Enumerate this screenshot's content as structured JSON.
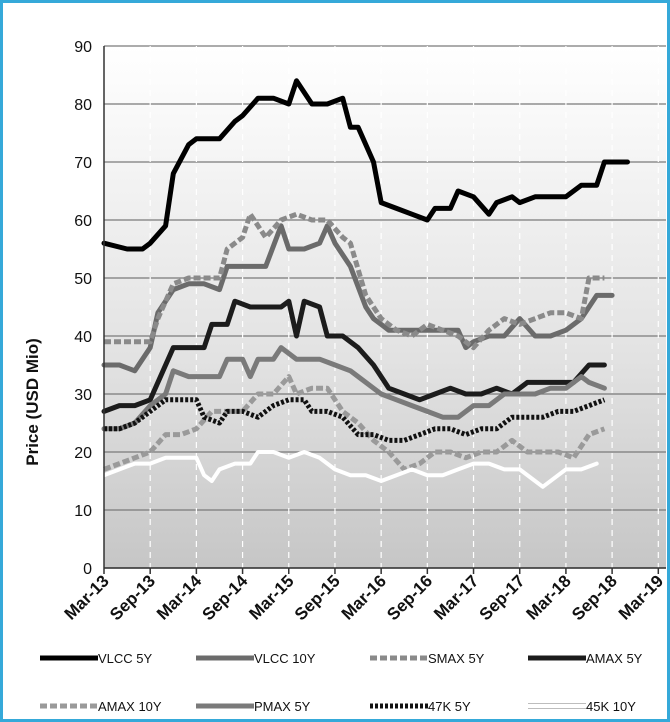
{
  "chart_data": {
    "type": "line",
    "title": "",
    "ylabel": "Price (USD Mio)",
    "xlabel": "",
    "ylim": [
      0,
      90
    ],
    "yticks": [
      0,
      10,
      20,
      30,
      40,
      50,
      60,
      70,
      80,
      90
    ],
    "xlim": [
      0,
      73
    ],
    "xtick_labels": [
      "Mar-13",
      "Sep-13",
      "Mar-14",
      "Sep-14",
      "Mar-15",
      "Sep-15",
      "Mar-16",
      "Sep-16",
      "Mar-17",
      "Sep-17",
      "Mar-18",
      "Sep-18",
      "Mar-19"
    ],
    "xtick_positions": [
      0,
      6,
      12,
      18,
      24,
      30,
      36,
      42,
      48,
      54,
      60,
      66,
      72
    ],
    "grid": true,
    "legend_position": "bottom",
    "series": [
      {
        "name": "VLCC 5Y",
        "color": "#000000",
        "style": "solid",
        "width": 5,
        "points": [
          [
            0,
            56
          ],
          [
            3,
            55
          ],
          [
            5,
            55
          ],
          [
            6,
            56
          ],
          [
            8,
            59
          ],
          [
            9,
            68
          ],
          [
            11,
            73
          ],
          [
            12,
            74
          ],
          [
            13,
            74
          ],
          [
            15,
            74
          ],
          [
            17,
            77
          ],
          [
            18,
            78
          ],
          [
            20,
            81
          ],
          [
            22,
            81
          ],
          [
            24,
            80
          ],
          [
            25,
            84
          ],
          [
            27,
            80
          ],
          [
            29,
            80
          ],
          [
            31,
            81
          ],
          [
            32,
            76
          ],
          [
            33,
            76
          ],
          [
            35,
            70
          ],
          [
            36,
            63
          ],
          [
            38,
            62
          ],
          [
            40,
            61
          ],
          [
            42,
            60
          ],
          [
            43,
            62
          ],
          [
            45,
            62
          ],
          [
            46,
            65
          ],
          [
            48,
            64
          ],
          [
            50,
            61
          ],
          [
            51,
            63
          ],
          [
            53,
            64
          ],
          [
            54,
            63
          ],
          [
            56,
            64
          ],
          [
            58,
            64
          ],
          [
            60,
            64
          ],
          [
            62,
            66
          ],
          [
            64,
            66
          ],
          [
            65,
            70
          ],
          [
            67,
            70
          ],
          [
            68,
            70
          ]
        ]
      },
      {
        "name": "VLCC 10Y",
        "color": "#6b6b6b",
        "style": "solid",
        "width": 5,
        "points": [
          [
            0,
            35
          ],
          [
            2,
            35
          ],
          [
            4,
            34
          ],
          [
            6,
            38
          ],
          [
            7,
            44
          ],
          [
            9,
            48
          ],
          [
            11,
            49
          ],
          [
            13,
            49
          ],
          [
            15,
            48
          ],
          [
            16,
            52
          ],
          [
            18,
            52
          ],
          [
            20,
            52
          ],
          [
            21,
            52
          ],
          [
            23,
            59
          ],
          [
            24,
            55
          ],
          [
            26,
            55
          ],
          [
            28,
            56
          ],
          [
            29,
            59
          ],
          [
            30,
            56
          ],
          [
            32,
            52
          ],
          [
            34,
            45
          ],
          [
            35,
            43
          ],
          [
            37,
            41
          ],
          [
            40,
            41
          ],
          [
            42,
            41
          ],
          [
            44,
            41
          ],
          [
            46,
            41
          ],
          [
            47,
            38
          ],
          [
            48,
            39
          ],
          [
            50,
            40
          ],
          [
            52,
            40
          ],
          [
            54,
            43
          ],
          [
            56,
            40
          ],
          [
            58,
            40
          ],
          [
            60,
            41
          ],
          [
            62,
            43
          ],
          [
            64,
            47
          ],
          [
            66,
            47
          ]
        ]
      },
      {
        "name": "SMAX 5Y",
        "color": "#8a8a8a",
        "style": "dashed",
        "width": 5,
        "points": [
          [
            0,
            39
          ],
          [
            3,
            39
          ],
          [
            5,
            39
          ],
          [
            6,
            39
          ],
          [
            7,
            43
          ],
          [
            9,
            49
          ],
          [
            11,
            50
          ],
          [
            13,
            50
          ],
          [
            15,
            50
          ],
          [
            16,
            55
          ],
          [
            18,
            57
          ],
          [
            19,
            61
          ],
          [
            21,
            57
          ],
          [
            23,
            60
          ],
          [
            25,
            61
          ],
          [
            27,
            60
          ],
          [
            29,
            60
          ],
          [
            31,
            57
          ],
          [
            32,
            56
          ],
          [
            34,
            47
          ],
          [
            36,
            43
          ],
          [
            38,
            41
          ],
          [
            40,
            40
          ],
          [
            42,
            42
          ],
          [
            44,
            41
          ],
          [
            46,
            40
          ],
          [
            48,
            38
          ],
          [
            50,
            41
          ],
          [
            52,
            43
          ],
          [
            54,
            42
          ],
          [
            56,
            43
          ],
          [
            58,
            44
          ],
          [
            60,
            44
          ],
          [
            62,
            43
          ],
          [
            63,
            50
          ],
          [
            65,
            50
          ]
        ]
      },
      {
        "name": "AMAX 5Y",
        "color": "#1c1c1c",
        "style": "solid",
        "width": 5,
        "points": [
          [
            0,
            27
          ],
          [
            2,
            28
          ],
          [
            4,
            28
          ],
          [
            6,
            29
          ],
          [
            7,
            32
          ],
          [
            9,
            38
          ],
          [
            11,
            38
          ],
          [
            13,
            38
          ],
          [
            14,
            42
          ],
          [
            16,
            42
          ],
          [
            17,
            46
          ],
          [
            19,
            45
          ],
          [
            21,
            45
          ],
          [
            23,
            45
          ],
          [
            24,
            46
          ],
          [
            25,
            40
          ],
          [
            26,
            46
          ],
          [
            28,
            45
          ],
          [
            29,
            40
          ],
          [
            31,
            40
          ],
          [
            33,
            38
          ],
          [
            35,
            35
          ],
          [
            37,
            31
          ],
          [
            39,
            30
          ],
          [
            41,
            29
          ],
          [
            43,
            30
          ],
          [
            45,
            31
          ],
          [
            47,
            30
          ],
          [
            49,
            30
          ],
          [
            51,
            31
          ],
          [
            53,
            30
          ],
          [
            55,
            32
          ],
          [
            57,
            32
          ],
          [
            59,
            32
          ],
          [
            61,
            32
          ],
          [
            63,
            35
          ],
          [
            65,
            35
          ]
        ]
      },
      {
        "name": "AMAX 10Y",
        "color": "#9a9a9a",
        "style": "dashed",
        "width": 5,
        "points": [
          [
            0,
            17
          ],
          [
            2,
            18
          ],
          [
            4,
            19
          ],
          [
            6,
            20
          ],
          [
            8,
            23
          ],
          [
            10,
            23
          ],
          [
            12,
            24
          ],
          [
            14,
            27
          ],
          [
            16,
            27
          ],
          [
            18,
            27
          ],
          [
            20,
            30
          ],
          [
            22,
            30
          ],
          [
            24,
            33
          ],
          [
            25,
            30
          ],
          [
            27,
            31
          ],
          [
            29,
            31
          ],
          [
            31,
            27
          ],
          [
            33,
            25
          ],
          [
            35,
            22
          ],
          [
            37,
            20
          ],
          [
            39,
            17
          ],
          [
            41,
            18
          ],
          [
            43,
            20
          ],
          [
            45,
            20
          ],
          [
            47,
            19
          ],
          [
            49,
            20
          ],
          [
            51,
            20
          ],
          [
            53,
            22
          ],
          [
            55,
            20
          ],
          [
            57,
            20
          ],
          [
            59,
            20
          ],
          [
            61,
            19
          ],
          [
            63,
            23
          ],
          [
            65,
            24
          ]
        ]
      },
      {
        "name": "PMAX 5Y",
        "color": "#7a7a7a",
        "style": "solid",
        "width": 5,
        "points": [
          [
            0,
            24
          ],
          [
            2,
            24
          ],
          [
            4,
            25
          ],
          [
            6,
            28
          ],
          [
            8,
            30
          ],
          [
            9,
            34
          ],
          [
            11,
            33
          ],
          [
            13,
            33
          ],
          [
            15,
            33
          ],
          [
            16,
            36
          ],
          [
            18,
            36
          ],
          [
            19,
            33
          ],
          [
            20,
            36
          ],
          [
            22,
            36
          ],
          [
            23,
            38
          ],
          [
            25,
            36
          ],
          [
            27,
            36
          ],
          [
            28,
            36
          ],
          [
            30,
            35
          ],
          [
            32,
            34
          ],
          [
            34,
            32
          ],
          [
            36,
            30
          ],
          [
            38,
            29
          ],
          [
            40,
            28
          ],
          [
            42,
            27
          ],
          [
            44,
            26
          ],
          [
            46,
            26
          ],
          [
            48,
            28
          ],
          [
            50,
            28
          ],
          [
            52,
            30
          ],
          [
            54,
            30
          ],
          [
            56,
            30
          ],
          [
            58,
            31
          ],
          [
            60,
            31
          ],
          [
            62,
            33
          ],
          [
            63,
            32
          ],
          [
            65,
            31
          ]
        ]
      },
      {
        "name": "47K 5Y",
        "color": "#111111",
        "style": "dotted",
        "width": 5,
        "points": [
          [
            0,
            24
          ],
          [
            2,
            24
          ],
          [
            4,
            25
          ],
          [
            6,
            27
          ],
          [
            8,
            29
          ],
          [
            10,
            29
          ],
          [
            12,
            29
          ],
          [
            13,
            26
          ],
          [
            15,
            25
          ],
          [
            16,
            27
          ],
          [
            18,
            27
          ],
          [
            20,
            26
          ],
          [
            22,
            28
          ],
          [
            24,
            29
          ],
          [
            26,
            29
          ],
          [
            27,
            27
          ],
          [
            29,
            27
          ],
          [
            31,
            26
          ],
          [
            33,
            23
          ],
          [
            35,
            23
          ],
          [
            37,
            22
          ],
          [
            39,
            22
          ],
          [
            41,
            23
          ],
          [
            43,
            24
          ],
          [
            45,
            24
          ],
          [
            47,
            23
          ],
          [
            49,
            24
          ],
          [
            51,
            24
          ],
          [
            53,
            26
          ],
          [
            55,
            26
          ],
          [
            57,
            26
          ],
          [
            59,
            27
          ],
          [
            61,
            27
          ],
          [
            63,
            28
          ],
          [
            65,
            29
          ]
        ]
      },
      {
        "name": "45K 10Y",
        "color": "#ffffff",
        "style": "solid",
        "width": 4,
        "points": [
          [
            0,
            16
          ],
          [
            2,
            17
          ],
          [
            4,
            18
          ],
          [
            6,
            18
          ],
          [
            8,
            19
          ],
          [
            10,
            19
          ],
          [
            12,
            19
          ],
          [
            13,
            16
          ],
          [
            14,
            15
          ],
          [
            15,
            17
          ],
          [
            17,
            18
          ],
          [
            19,
            18
          ],
          [
            20,
            20
          ],
          [
            22,
            20
          ],
          [
            24,
            19
          ],
          [
            26,
            20
          ],
          [
            28,
            19
          ],
          [
            30,
            17
          ],
          [
            32,
            16
          ],
          [
            34,
            16
          ],
          [
            36,
            15
          ],
          [
            38,
            16
          ],
          [
            40,
            17
          ],
          [
            42,
            16
          ],
          [
            44,
            16
          ],
          [
            46,
            17
          ],
          [
            48,
            18
          ],
          [
            50,
            18
          ],
          [
            52,
            17
          ],
          [
            54,
            17
          ],
          [
            56,
            15
          ],
          [
            57,
            14
          ],
          [
            59,
            16
          ],
          [
            60,
            17
          ],
          [
            62,
            17
          ],
          [
            64,
            18
          ]
        ]
      }
    ]
  }
}
